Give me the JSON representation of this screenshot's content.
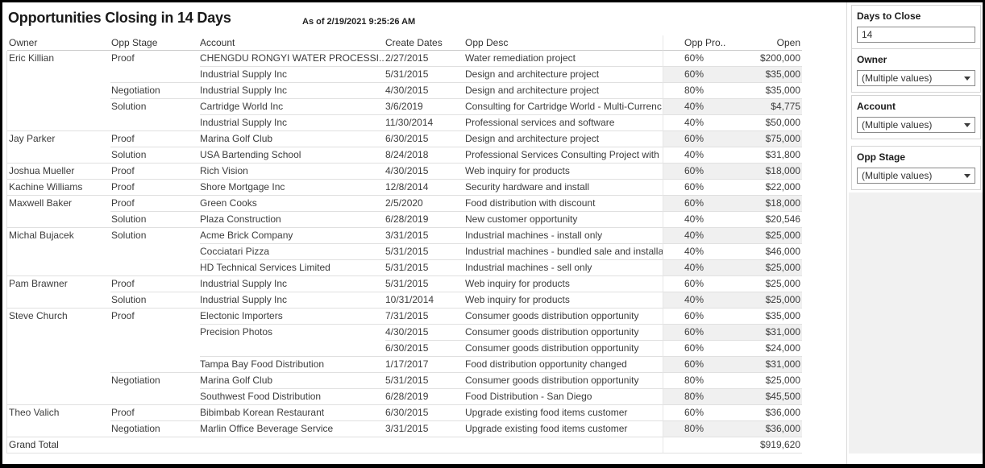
{
  "title": "Opportunities Closing in 14 Days",
  "subtitle": "As of 2/19/2021 9:25:26 AM",
  "table": {
    "columns": [
      "Owner",
      "Opp Stage",
      "Account",
      "Create Dates",
      "Opp Desc",
      "Opp Pro..",
      "Open"
    ],
    "rows": [
      {
        "owner": "Eric Killian",
        "stage": "Proof",
        "account": "CHENGDU RONGYI WATER PROCESSI..",
        "date": "2/27/2015",
        "desc": "Water remediation project",
        "prob": "60%",
        "open": "$200,000"
      },
      {
        "owner": "",
        "stage": "",
        "account": "Industrial Supply Inc",
        "date": "5/31/2015",
        "desc": "Design and architecture project",
        "prob": "60%",
        "open": "$35,000",
        "sep_stage": true
      },
      {
        "owner": "",
        "stage": "Negotiation",
        "account": "Industrial Supply Inc",
        "date": "4/30/2015",
        "desc": "Design and architecture project",
        "prob": "80%",
        "open": "$35,000",
        "sep_stage": true
      },
      {
        "owner": "",
        "stage": "Solution",
        "account": "Cartridge World Inc",
        "date": "3/6/2019",
        "desc": "Consulting for Cartridge World - Multi-Currenc..",
        "prob": "40%",
        "open": "$4,775"
      },
      {
        "owner": "",
        "stage": "",
        "account": "Industrial Supply Inc",
        "date": "11/30/2014",
        "desc": "Professional services and software",
        "prob": "40%",
        "open": "$50,000",
        "sep_owner": true,
        "sep_stage": true
      },
      {
        "owner": "Jay Parker",
        "stage": "Proof",
        "account": "Marina Golf Club",
        "date": "6/30/2015",
        "desc": "Design and architecture project",
        "prob": "60%",
        "open": "$75,000",
        "sep_stage": true
      },
      {
        "owner": "",
        "stage": "Solution",
        "account": "USA Bartending School",
        "date": "8/24/2018",
        "desc": "Professional Services Consulting Project with ..",
        "prob": "40%",
        "open": "$31,800",
        "sep_owner": true,
        "sep_stage": true
      },
      {
        "owner": "Joshua Mueller",
        "stage": "Proof",
        "account": "Rich Vision",
        "date": "4/30/2015",
        "desc": "Web inquiry for products",
        "prob": "60%",
        "open": "$18,000",
        "sep_owner": true,
        "sep_stage": true
      },
      {
        "owner": "Kachine Williams",
        "stage": "Proof",
        "account": "Shore Mortgage Inc",
        "date": "12/8/2014",
        "desc": "Security hardware and install",
        "prob": "60%",
        "open": "$22,000",
        "sep_owner": true,
        "sep_stage": true
      },
      {
        "owner": "Maxwell Baker",
        "stage": "Proof",
        "account": "Green Cooks",
        "date": "2/5/2020",
        "desc": "Food distribution with discount",
        "prob": "60%",
        "open": "$18,000",
        "sep_stage": true
      },
      {
        "owner": "",
        "stage": "Solution",
        "account": "Plaza Construction",
        "date": "6/28/2019",
        "desc": "New customer opportunity",
        "prob": "40%",
        "open": "$20,546",
        "sep_owner": true,
        "sep_stage": true
      },
      {
        "owner": "Michal Bujacek",
        "stage": "Solution",
        "account": "Acme Brick Company",
        "date": "3/31/2015",
        "desc": "Industrial machines - install only",
        "prob": "40%",
        "open": "$25,000"
      },
      {
        "owner": "",
        "stage": "",
        "account": "Cocciatari Pizza",
        "date": "5/31/2015",
        "desc": "Industrial machines - bundled sale and installa..",
        "prob": "40%",
        "open": "$46,000"
      },
      {
        "owner": "",
        "stage": "",
        "account": "HD Technical Services Limited",
        "date": "5/31/2015",
        "desc": "Industrial machines - sell only",
        "prob": "40%",
        "open": "$25,000",
        "sep_owner": true,
        "sep_stage": true
      },
      {
        "owner": "Pam Brawner",
        "stage": "Proof",
        "account": "Industrial Supply Inc",
        "date": "5/31/2015",
        "desc": "Web inquiry for products",
        "prob": "60%",
        "open": "$25,000",
        "sep_stage": true
      },
      {
        "owner": "",
        "stage": "Solution",
        "account": "Industrial Supply Inc",
        "date": "10/31/2014",
        "desc": "Web inquiry for products",
        "prob": "40%",
        "open": "$25,000",
        "sep_owner": true,
        "sep_stage": true
      },
      {
        "owner": "Steve Church",
        "stage": "Proof",
        "account": "Electonic Importers",
        "date": "7/31/2015",
        "desc": "Consumer goods distribution opportunity",
        "prob": "60%",
        "open": "$35,000"
      },
      {
        "owner": "",
        "stage": "",
        "account": "Precision Photos",
        "date": "4/30/2015",
        "desc": "Consumer goods distribution opportunity",
        "prob": "60%",
        "open": "$31,000",
        "sep_account": false
      },
      {
        "owner": "",
        "stage": "",
        "account": "",
        "date": "6/30/2015",
        "desc": "Consumer goods distribution opportunity",
        "prob": "60%",
        "open": "$24,000"
      },
      {
        "owner": "",
        "stage": "",
        "account": "Tampa Bay Food Distribution",
        "date": "1/17/2017",
        "desc": "Food distribution opportunity changed",
        "prob": "60%",
        "open": "$31,000",
        "sep_stage": true
      },
      {
        "owner": "",
        "stage": "Negotiation",
        "account": "Marina Golf Club",
        "date": "5/31/2015",
        "desc": "Consumer goods distribution opportunity",
        "prob": "80%",
        "open": "$25,000"
      },
      {
        "owner": "",
        "stage": "",
        "account": "Southwest Food Distribution",
        "date": "6/28/2019",
        "desc": "Food Distribution - San Diego",
        "prob": "80%",
        "open": "$45,500",
        "sep_owner": true,
        "sep_stage": true
      },
      {
        "owner": "Theo Valich",
        "stage": "Proof",
        "account": "Bibimbab Korean Restaurant",
        "date": "6/30/2015",
        "desc": "Upgrade existing food items customer",
        "prob": "60%",
        "open": "$36,000",
        "sep_stage": true
      },
      {
        "owner": "",
        "stage": "Negotiation",
        "account": "Marlin Office Beverage Service",
        "date": "3/31/2015",
        "desc": "Upgrade existing food items customer",
        "prob": "80%",
        "open": "$36,000",
        "sep_owner": true,
        "sep_stage": true
      }
    ],
    "grand_total": {
      "label": "Grand Total",
      "open": "$919,620"
    }
  },
  "filters": {
    "days_to_close": {
      "label": "Days to Close",
      "value": "14"
    },
    "owner": {
      "label": "Owner",
      "value": "(Multiple values)"
    },
    "account": {
      "label": "Account",
      "value": "(Multiple values)"
    },
    "opp_stage": {
      "label": "Opp Stage",
      "value": "(Multiple values)"
    }
  },
  "colors": {
    "band": "#f0f0f0",
    "row_line": "#e0e0e0",
    "frame": "#000000",
    "panel_fill": "#f1f1f1"
  }
}
